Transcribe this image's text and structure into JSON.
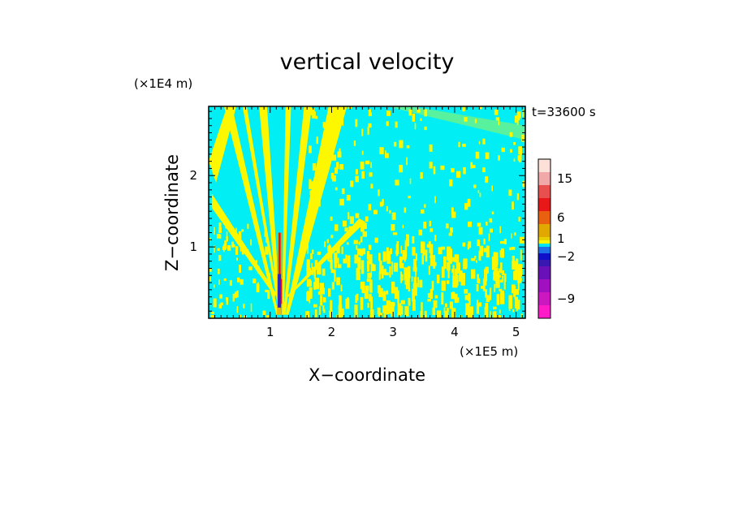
{
  "chart_data": {
    "type": "heatmap",
    "title": "vertical velocity",
    "xlabel": "X−coordinate",
    "ylabel": "Z−coordinate",
    "x_scale_label": "(×1E5 m)",
    "y_scale_label": "(×1E4 m)",
    "time_label": "t=33600 s",
    "xlim": [
      0,
      5.15
    ],
    "ylim": [
      0,
      2.97
    ],
    "x_ticks": [
      1,
      2,
      3,
      4,
      5
    ],
    "y_ticks": [
      1,
      2
    ],
    "x_tick_labels": [
      "1",
      "2",
      "3",
      "4",
      "5"
    ],
    "y_tick_labels": [
      "1",
      "2"
    ],
    "field_description": "cyan background (~0) with yellow positive bands; plume of strong up/down motion near x=1.15",
    "plume": {
      "x": 1.15,
      "z_bottom": 0.05,
      "z_top": 1.2,
      "up_color": "#e8101a",
      "down_color": "#2a1fc8"
    },
    "colorbar": {
      "levels": [
        {
          "color": "#ff1cc8",
          "label": ""
        },
        {
          "color": "#cc18c0",
          "label": "−9"
        },
        {
          "color": "#a010c0",
          "label": ""
        },
        {
          "color": "#6a10b8",
          "label": ""
        },
        {
          "color": "#3818b0",
          "label": ""
        },
        {
          "color": "#1010c8",
          "label": "−2"
        },
        {
          "color": "#1f70e8",
          "label": ""
        },
        {
          "color": "#00e6f0",
          "label": ""
        },
        {
          "color": "#f8f800",
          "label": ""
        },
        {
          "color": "#e8d000",
          "label": "1"
        },
        {
          "color": "#e0a800",
          "label": ""
        },
        {
          "color": "#e86010",
          "label": "6"
        },
        {
          "color": "#e81818",
          "label": ""
        },
        {
          "color": "#e85050",
          "label": ""
        },
        {
          "color": "#f0a8a8",
          "label": "15"
        },
        {
          "color": "#fde0d8",
          "label": ""
        }
      ]
    }
  },
  "colors": {
    "background": "#00eef4",
    "positive": "#fdf800",
    "axis": "#000000"
  }
}
